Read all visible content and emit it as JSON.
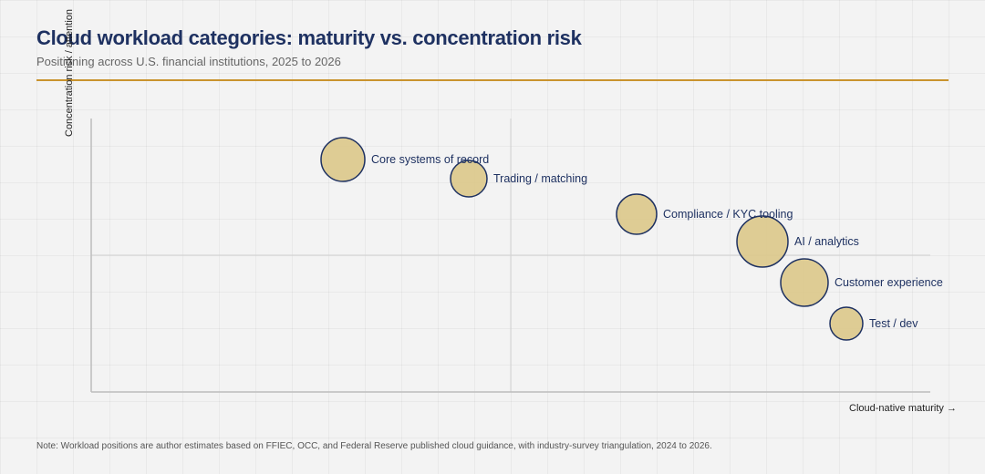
{
  "header": {
    "title": "Cloud workload categories: maturity vs. concentration risk",
    "subtitle": "Positioning across U.S. financial institutions, 2025 to 2026"
  },
  "footer": {
    "note": "Note: Workload positions are author estimates based on FFIEC, OCC, and Federal Reserve published cloud guidance, with industry-survey triangulation, 2024 to 2026."
  },
  "colors": {
    "bubble_fill": "#dcc88a",
    "bubble_stroke": "#1e3161",
    "label": "#1e3161",
    "axis": "#bdbdbd",
    "accent_rule": "#c9932e"
  },
  "chart_data": {
    "type": "scatter",
    "xlabel": "Cloud-native maturity →",
    "ylabel": "Concentration risk / attention",
    "xlim": [
      0,
      100
    ],
    "ylim": [
      0,
      100
    ],
    "grid": false,
    "legend": "none",
    "quadrant_dividers": {
      "x": 50,
      "y": 50
    },
    "points": [
      {
        "label": "Core systems of record",
        "x": 30,
        "y": 85,
        "size": 24
      },
      {
        "label": "Trading / matching",
        "x": 45,
        "y": 78,
        "size": 20
      },
      {
        "label": "Compliance / KYC tooling",
        "x": 65,
        "y": 65,
        "size": 22
      },
      {
        "label": "AI / analytics",
        "x": 80,
        "y": 55,
        "size": 28
      },
      {
        "label": "Customer experience",
        "x": 85,
        "y": 40,
        "size": 26
      },
      {
        "label": "Test / dev",
        "x": 90,
        "y": 25,
        "size": 18
      }
    ]
  }
}
